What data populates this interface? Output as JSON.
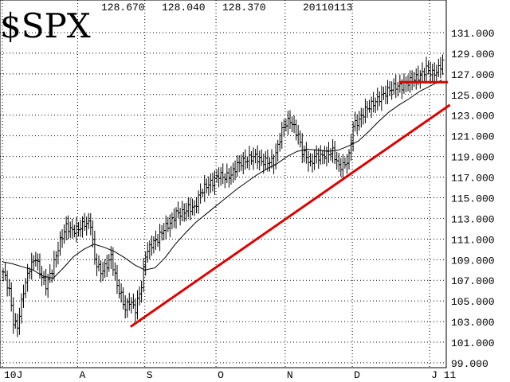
{
  "header": {
    "symbol": "$SPX",
    "open": "128.670",
    "high": "128.040",
    "low": "128.370",
    "date": "20110113"
  },
  "chart_data": {
    "type": "bar",
    "subtype": "ohlc",
    "title": "$SPX",
    "xlabel": "",
    "ylabel": "",
    "ylim": [
      99,
      132
    ],
    "y_ticks": [
      "99.000",
      "101.000",
      "103.000",
      "105.000",
      "107.000",
      "109.000",
      "111.000",
      "113.000",
      "115.000",
      "117.000",
      "119.000",
      "121.000",
      "123.000",
      "125.000",
      "127.000",
      "129.000",
      "131.000"
    ],
    "x_ticks": [
      {
        "label": "10J",
        "day": 0
      },
      {
        "label": "A",
        "day": 37
      },
      {
        "label": "S",
        "day": 70
      },
      {
        "label": "O",
        "day": 105
      },
      {
        "label": "N",
        "day": 139
      },
      {
        "label": "D",
        "day": 172
      },
      {
        "label": "J 11",
        "day": 210
      }
    ],
    "close_keypoints": [
      [
        0,
        107.8
      ],
      [
        3,
        106.0
      ],
      [
        5,
        103.0
      ],
      [
        7,
        102.5
      ],
      [
        10,
        106.0
      ],
      [
        13,
        108.2
      ],
      [
        16,
        109.2
      ],
      [
        18,
        107.8
      ],
      [
        21,
        106.5
      ],
      [
        24,
        108.0
      ],
      [
        28,
        110.8
      ],
      [
        31,
        112.2
      ],
      [
        34,
        111.8
      ],
      [
        37,
        112.0
      ],
      [
        40,
        112.5
      ],
      [
        43,
        112.5
      ],
      [
        45,
        109.0
      ],
      [
        48,
        107.8
      ],
      [
        51,
        108.5
      ],
      [
        53,
        109.3
      ],
      [
        56,
        106.5
      ],
      [
        58,
        105.5
      ],
      [
        60,
        104.2
      ],
      [
        62,
        105.0
      ],
      [
        65,
        104.2
      ],
      [
        68,
        106.5
      ],
      [
        70,
        109.5
      ],
      [
        73,
        110.5
      ],
      [
        76,
        111.0
      ],
      [
        79,
        112.0
      ],
      [
        82,
        112.5
      ],
      [
        85,
        113.5
      ],
      [
        88,
        113.5
      ],
      [
        91,
        114.0
      ],
      [
        94,
        114.0
      ],
      [
        97,
        115.5
      ],
      [
        100,
        116.2
      ],
      [
        103,
        116.5
      ],
      [
        106,
        117.2
      ],
      [
        109,
        117.0
      ],
      [
        112,
        117.2
      ],
      [
        115,
        118.2
      ],
      [
        118,
        118.5
      ],
      [
        121,
        118.8
      ],
      [
        124,
        119.0
      ],
      [
        127,
        118.5
      ],
      [
        130,
        118.5
      ],
      [
        133,
        118.5
      ],
      [
        135,
        120.0
      ],
      [
        137,
        121.5
      ],
      [
        139,
        122.2
      ],
      [
        141,
        122.5
      ],
      [
        143,
        121.8
      ],
      [
        145,
        121.0
      ],
      [
        147,
        119.5
      ],
      [
        149,
        119.0
      ],
      [
        151,
        118.2
      ],
      [
        153,
        119.0
      ],
      [
        156,
        119.0
      ],
      [
        159,
        119.2
      ],
      [
        162,
        119.5
      ],
      [
        165,
        118.0
      ],
      [
        168,
        118.2
      ],
      [
        170,
        119.0
      ],
      [
        172,
        122.0
      ],
      [
        175,
        122.5
      ],
      [
        178,
        123.5
      ],
      [
        181,
        124.0
      ],
      [
        184,
        124.5
      ],
      [
        187,
        125.0
      ],
      [
        190,
        125.5
      ],
      [
        193,
        125.8
      ],
      [
        196,
        125.8
      ],
      [
        199,
        126.2
      ],
      [
        202,
        126.5
      ],
      [
        205,
        126.8
      ],
      [
        208,
        127.5
      ],
      [
        211,
        127.0
      ],
      [
        213,
        127.2
      ],
      [
        215,
        127.8
      ],
      [
        216,
        128.2
      ]
    ],
    "moving_average": [
      [
        0,
        108.8
      ],
      [
        5,
        108.6
      ],
      [
        10,
        108.3
      ],
      [
        15,
        108.0
      ],
      [
        20,
        107.4
      ],
      [
        25,
        107.2
      ],
      [
        30,
        108.2
      ],
      [
        35,
        109.3
      ],
      [
        40,
        110.0
      ],
      [
        45,
        110.5
      ],
      [
        50,
        110.2
      ],
      [
        55,
        109.8
      ],
      [
        60,
        109.2
      ],
      [
        65,
        108.5
      ],
      [
        70,
        108.0
      ],
      [
        75,
        108.2
      ],
      [
        80,
        109.2
      ],
      [
        85,
        110.5
      ],
      [
        90,
        111.6
      ],
      [
        95,
        112.6
      ],
      [
        100,
        113.4
      ],
      [
        105,
        114.2
      ],
      [
        110,
        115.0
      ],
      [
        115,
        115.8
      ],
      [
        120,
        116.5
      ],
      [
        125,
        117.2
      ],
      [
        130,
        117.8
      ],
      [
        135,
        118.3
      ],
      [
        140,
        119.0
      ],
      [
        145,
        119.5
      ],
      [
        150,
        119.7
      ],
      [
        155,
        119.6
      ],
      [
        160,
        119.5
      ],
      [
        165,
        119.6
      ],
      [
        170,
        120.0
      ],
      [
        175,
        120.5
      ],
      [
        180,
        121.4
      ],
      [
        185,
        122.4
      ],
      [
        190,
        123.3
      ],
      [
        195,
        124.0
      ],
      [
        200,
        124.6
      ],
      [
        205,
        125.3
      ],
      [
        210,
        125.8
      ],
      [
        216,
        126.4
      ]
    ],
    "trendlines": [
      {
        "label": "",
        "color": "#e00000",
        "points": [
          [
            63,
            102.5
          ],
          [
            220,
            124.0
          ]
        ]
      },
      {
        "label": "",
        "color": "#e00000",
        "points": [
          [
            195,
            126.2
          ],
          [
            219,
            126.2
          ]
        ]
      }
    ],
    "grid": true,
    "y_axis_position": "right"
  }
}
